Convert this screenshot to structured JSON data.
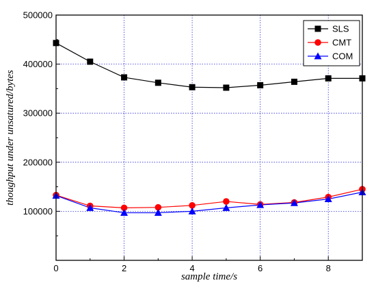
{
  "chart_data": {
    "type": "line",
    "title": "",
    "xlabel": "sample time/s",
    "ylabel": "thoughput under unsatured/bytes",
    "xlim": [
      0,
      9
    ],
    "ylim": [
      0,
      500000
    ],
    "x": [
      0,
      1,
      2,
      3,
      4,
      5,
      6,
      7,
      8,
      9
    ],
    "x_ticks": [
      0,
      2,
      4,
      6,
      8
    ],
    "y_ticks": [
      0,
      100000,
      200000,
      300000,
      400000,
      500000
    ],
    "x_tick_labels": [
      "0",
      "2",
      "4",
      "6",
      "8"
    ],
    "y_tick_labels": [
      "",
      "100000",
      "200000",
      "300000",
      "400000",
      "500000"
    ],
    "grid": true,
    "grid_color": "#2a2ad6",
    "legend_position": "top-right",
    "series": [
      {
        "name": "SLS",
        "marker": "square",
        "line_color": "#000000",
        "marker_color": "#000000",
        "values": [
          443000,
          405000,
          373000,
          362000,
          353000,
          352000,
          357000,
          364000,
          371000,
          371000
        ]
      },
      {
        "name": "CMT",
        "marker": "circle",
        "line_color": "#ff0000",
        "marker_color": "#ff0000",
        "values": [
          133000,
          111000,
          107000,
          108000,
          112000,
          120000,
          114000,
          118000,
          129000,
          145000
        ]
      },
      {
        "name": "COM",
        "marker": "triangle",
        "line_color": "#0000ff",
        "marker_color": "#0000ff",
        "values": [
          132000,
          107000,
          97000,
          97000,
          100000,
          107000,
          113000,
          117000,
          125000,
          139000
        ]
      }
    ]
  }
}
